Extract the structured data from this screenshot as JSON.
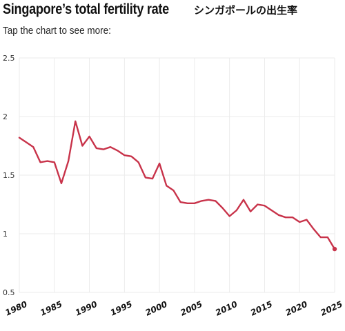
{
  "header": {
    "title": "Singapore’s total fertility rate",
    "jp_title": "シンガポールの出生率",
    "subtitle": "Tap the chart to see more:"
  },
  "colors": {
    "line": "#c8334a",
    "grid": "#ebebeb"
  },
  "chart_data": {
    "type": "line",
    "title": "Singapore’s total fertility rate",
    "xlabel": "",
    "ylabel": "",
    "xlim": [
      1980,
      2025
    ],
    "ylim": [
      0.5,
      2.5
    ],
    "yticks": [
      0.5,
      1,
      1.5,
      2,
      2.5
    ],
    "ytick_labels": [
      "0.5",
      "1",
      "1.5",
      "2",
      "2.5"
    ],
    "xticks": [
      1980,
      1985,
      1990,
      1995,
      2000,
      2005,
      2010,
      2015,
      2020,
      2025
    ],
    "xtick_labels": [
      "1980",
      "1985",
      "1990",
      "1995",
      "2000",
      "2005",
      "2010",
      "2015",
      "2020",
      "2025"
    ],
    "grid": true,
    "series": [
      {
        "x": [
          1980,
          1981,
          1982,
          1983,
          1984,
          1985,
          1986,
          1987,
          1988,
          1989,
          1990,
          1991,
          1992,
          1993,
          1994,
          1995,
          1996,
          1997,
          1998,
          1999,
          2000,
          2001,
          2002,
          2003,
          2004,
          2005,
          2006,
          2007,
          2008,
          2009,
          2010,
          2011,
          2012,
          2013,
          2014,
          2015,
          2016,
          2017,
          2018,
          2019,
          2020,
          2021,
          2022,
          2023,
          2024,
          2025
        ],
        "y": [
          1.82,
          1.78,
          1.74,
          1.61,
          1.62,
          1.61,
          1.43,
          1.62,
          1.96,
          1.75,
          1.83,
          1.73,
          1.72,
          1.74,
          1.71,
          1.67,
          1.66,
          1.61,
          1.48,
          1.47,
          1.6,
          1.41,
          1.37,
          1.27,
          1.26,
          1.26,
          1.28,
          1.29,
          1.28,
          1.22,
          1.15,
          1.2,
          1.29,
          1.19,
          1.25,
          1.24,
          1.2,
          1.16,
          1.14,
          1.14,
          1.1,
          1.12,
          1.04,
          0.97,
          0.97,
          0.87
        ]
      }
    ]
  }
}
